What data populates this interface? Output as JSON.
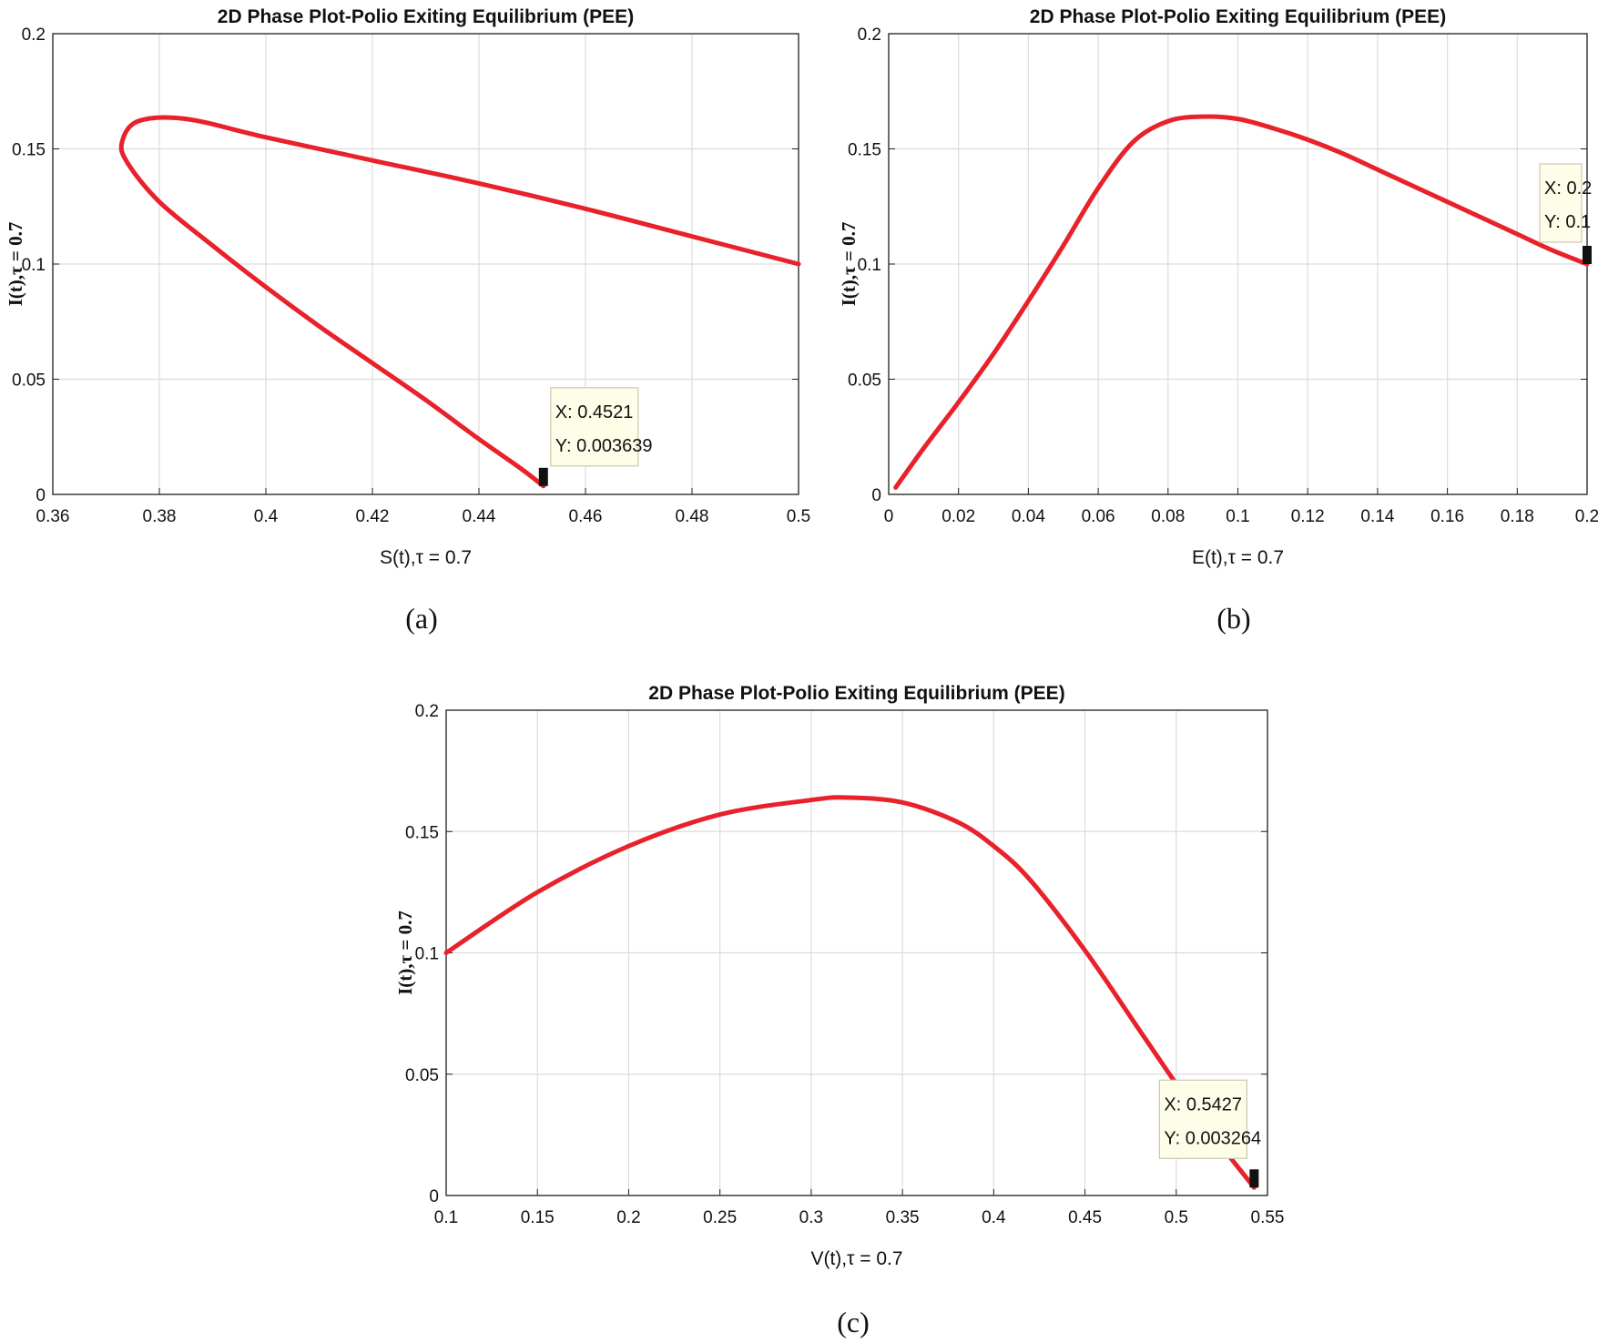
{
  "chart_data": [
    {
      "type": "line",
      "panel_label": "(a)",
      "title": "2D Phase Plot-Polio Exiting Equilibrium (PEE)",
      "xlabel": "S(t),τ = 0.7",
      "ylabel": "I(t),τ = 0.7",
      "xlim": [
        0.36,
        0.5
      ],
      "ylim": [
        0,
        0.2
      ],
      "xticks": [
        "0.36",
        "0.38",
        "0.4",
        "0.42",
        "0.44",
        "0.46",
        "0.48",
        "0.5"
      ],
      "yticks": [
        "0",
        "0.05",
        "0.1",
        "0.15",
        "0.2"
      ],
      "grid": true,
      "line_color": "#e8212b",
      "series": [
        {
          "x": [
            0.5,
            0.48,
            0.46,
            0.44,
            0.42,
            0.4,
            0.385,
            0.376,
            0.373,
            0.374,
            0.38,
            0.39,
            0.4,
            0.41,
            0.42,
            0.43,
            0.44,
            0.448,
            0.4521
          ],
          "y": [
            0.1,
            0.112,
            0.124,
            0.135,
            0.145,
            0.155,
            0.163,
            0.162,
            0.153,
            0.144,
            0.127,
            0.108,
            0.09,
            0.073,
            0.057,
            0.041,
            0.024,
            0.011,
            0.003639
          ]
        }
      ],
      "datatip": {
        "x_text": "X: 0.4521",
        "y_text": "Y: 0.003639",
        "x": 0.4521,
        "y": 0.003639
      }
    },
    {
      "type": "line",
      "panel_label": "(b)",
      "title": "2D Phase Plot-Polio Exiting Equilibrium (PEE)",
      "xlabel": "E(t),τ = 0.7",
      "ylabel": "I(t),τ = 0.7",
      "xlim": [
        0,
        0.2
      ],
      "ylim": [
        0,
        0.2
      ],
      "xticks": [
        "0",
        "0.02",
        "0.04",
        "0.06",
        "0.08",
        "0.1",
        "0.12",
        "0.14",
        "0.16",
        "0.18",
        "0.2"
      ],
      "yticks": [
        "0",
        "0.05",
        "0.1",
        "0.15",
        "0.2"
      ],
      "grid": true,
      "line_color": "#e8212b",
      "series": [
        {
          "x": [
            0.002,
            0.01,
            0.02,
            0.03,
            0.04,
            0.05,
            0.06,
            0.07,
            0.08,
            0.09,
            0.1,
            0.11,
            0.12,
            0.13,
            0.14,
            0.15,
            0.16,
            0.17,
            0.18,
            0.19,
            0.2
          ],
          "y": [
            0.003,
            0.02,
            0.04,
            0.061,
            0.084,
            0.108,
            0.133,
            0.153,
            0.162,
            0.164,
            0.163,
            0.159,
            0.154,
            0.148,
            0.141,
            0.134,
            0.127,
            0.12,
            0.113,
            0.106,
            0.1
          ]
        }
      ],
      "datatip": {
        "x_text": "X: 0.2",
        "y_text": "Y: 0.1",
        "x": 0.2,
        "y": 0.1
      }
    },
    {
      "type": "line",
      "panel_label": "(c)",
      "title": "2D Phase Plot-Polio Exiting Equilibrium (PEE)",
      "xlabel": "V(t),τ = 0.7",
      "ylabel": "I(t),τ = 0.7",
      "xlim": [
        0.1,
        0.55
      ],
      "ylim": [
        0,
        0.2
      ],
      "xticks": [
        "0.1",
        "0.15",
        "0.2",
        "0.25",
        "0.3",
        "0.35",
        "0.4",
        "0.45",
        "0.5",
        "0.55"
      ],
      "yticks": [
        "0",
        "0.05",
        "0.1",
        "0.15",
        "0.2"
      ],
      "grid": true,
      "line_color": "#e8212b",
      "series": [
        {
          "x": [
            0.1,
            0.15,
            0.2,
            0.25,
            0.3,
            0.32,
            0.35,
            0.38,
            0.4,
            0.42,
            0.45,
            0.48,
            0.5,
            0.52,
            0.5427
          ],
          "y": [
            0.1,
            0.125,
            0.144,
            0.157,
            0.163,
            0.164,
            0.162,
            0.154,
            0.144,
            0.13,
            0.101,
            0.068,
            0.046,
            0.025,
            0.003264
          ]
        }
      ],
      "datatip": {
        "x_text": "X: 0.5427",
        "y_text": "Y: 0.003264",
        "x": 0.5427,
        "y": 0.003264
      }
    }
  ]
}
